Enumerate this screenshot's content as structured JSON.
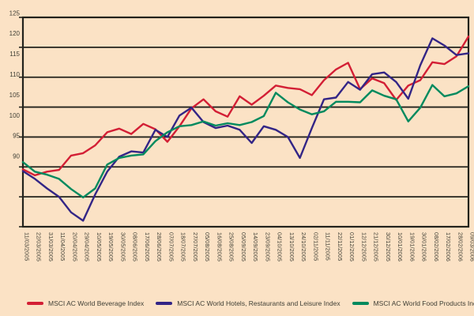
{
  "chart_data": {
    "type": "line",
    "title": "",
    "xlabel": "",
    "ylabel": "",
    "ylim": [
      90,
      125
    ],
    "y_tick_step": 5,
    "y_ticks": [
      "125",
      "120",
      "115",
      "110",
      "105",
      "100",
      "95",
      "90"
    ],
    "grid": true,
    "legend_position": "bottom",
    "background_color": "#fbe2c5",
    "axis_color": "#23231c",
    "text_color": "#3f3f35",
    "x": [
      "11/03/2005",
      "22/03/2005",
      "31/03/2005",
      "11/04/2005",
      "20/04/2005",
      "29/04/2005",
      "10/05/2005",
      "19/05/2005",
      "30/05/2005",
      "08/06/2005",
      "17/06/2005",
      "28/06/2005",
      "07/07/2005",
      "18/07/2005",
      "27/07/2005",
      "05/08/2005",
      "16/08/2005",
      "25/08/2005",
      "05/09/2005",
      "14/09/2005",
      "23/09/2005",
      "04/10/2005",
      "13/10/2005",
      "24/10/2005",
      "02/11/2005",
      "11/11/2005",
      "22/11/2005",
      "01/12/2005",
      "12/12/2005",
      "21/12/2005",
      "30/12/2005",
      "10/01/2006",
      "19/01/2006",
      "30/01/2006",
      "08/02/2006",
      "17/02/2006",
      "28/02/2006",
      "09/03/2006"
    ],
    "series": [
      {
        "name": "MSCI AC World Beverage Index",
        "color": "#d31f35",
        "values": [
          99.6,
          98.6,
          99.2,
          99.5,
          101.9,
          102.3,
          103.6,
          105.8,
          106.4,
          105.5,
          107.2,
          106.3,
          104.2,
          106.8,
          109.8,
          111.3,
          109.3,
          108.4,
          111.8,
          110.4,
          111.9,
          113.6,
          113.2,
          113.0,
          112.0,
          114.5,
          116.3,
          117.4,
          113.0,
          114.8,
          114.0,
          111.2,
          113.6,
          114.5,
          117.5,
          117.2,
          118.5,
          121.8
        ]
      },
      {
        "name": "MSCI AC World Hotels, Restaurants and Leisure Index",
        "color": "#332586",
        "values": [
          99.3,
          98.0,
          96.4,
          95.0,
          92.4,
          91.0,
          95.4,
          99.2,
          101.7,
          102.6,
          102.4,
          106.2,
          105.0,
          108.6,
          109.9,
          107.5,
          106.5,
          106.9,
          106.2,
          104.0,
          106.8,
          106.2,
          105.0,
          101.5,
          106.5,
          111.3,
          111.6,
          114.2,
          112.9,
          115.5,
          115.8,
          114.2,
          111.4,
          117.0,
          121.5,
          120.3,
          118.7,
          119.0
        ]
      },
      {
        "name": "MSCI AC World Food Products Index",
        "color": "#008a5e",
        "values": [
          100.8,
          99.2,
          98.7,
          98.0,
          96.3,
          94.9,
          96.4,
          100.4,
          101.5,
          101.9,
          102.1,
          104.3,
          105.8,
          106.8,
          107.0,
          107.6,
          106.9,
          107.3,
          107.0,
          107.5,
          108.5,
          112.4,
          110.8,
          109.6,
          108.8,
          109.3,
          110.9,
          110.9,
          110.8,
          112.8,
          111.9,
          111.3,
          107.6,
          109.9,
          113.7,
          111.8,
          112.3,
          113.5
        ]
      }
    ]
  }
}
